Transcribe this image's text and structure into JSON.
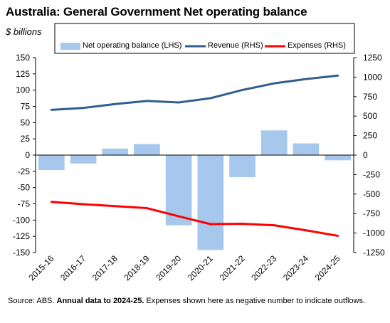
{
  "title": "Australia: General Government Net operating balance",
  "unit_label": "$ billions",
  "source": {
    "prefix": "Source: ABS.",
    "bold": "Annual data to 2024-25.",
    "suffix": "Expenses shown here as negative number to indicate outflows."
  },
  "chart_data": {
    "type": "bar",
    "categories": [
      "2015-16",
      "2016-17",
      "2017-18",
      "2018-19",
      "2019-20",
      "2020-21",
      "2021-22",
      "2022-23",
      "2023-24",
      "2024-25"
    ],
    "series": [
      {
        "name": "Net operating balance (LHS)",
        "type": "bar",
        "axis": "left",
        "color": "#a6c8ec",
        "values": [
          -23,
          -13,
          10,
          17,
          -108,
          -146,
          -34,
          38,
          18,
          -8
        ]
      },
      {
        "name": "Revenue (RHS)",
        "type": "line",
        "axis": "right",
        "color": "#2e5f8f",
        "values": [
          580,
          605,
          655,
          695,
          675,
          730,
          835,
          920,
          975,
          1020
        ]
      },
      {
        "name": "Expenses (RHS)",
        "type": "line",
        "axis": "right",
        "color": "#ff0000",
        "values": [
          -600,
          -630,
          -655,
          -680,
          -785,
          -885,
          -880,
          -900,
          -965,
          -1035
        ]
      }
    ],
    "y_left": {
      "min": -150,
      "max": 150,
      "step": 25,
      "ticks": [
        "150",
        "125",
        "100",
        "75",
        "50",
        "25",
        "0",
        "-25",
        "-50",
        "-75",
        "-100",
        "-125",
        "-150"
      ]
    },
    "y_right": {
      "min": -1250,
      "max": 1250,
      "step": 250,
      "ticks": [
        "1250",
        "1000",
        "750",
        "500",
        "250",
        "0",
        "-250",
        "-500",
        "-750",
        "-1000",
        "-1250"
      ]
    },
    "grid": false,
    "legend_position": "top"
  }
}
